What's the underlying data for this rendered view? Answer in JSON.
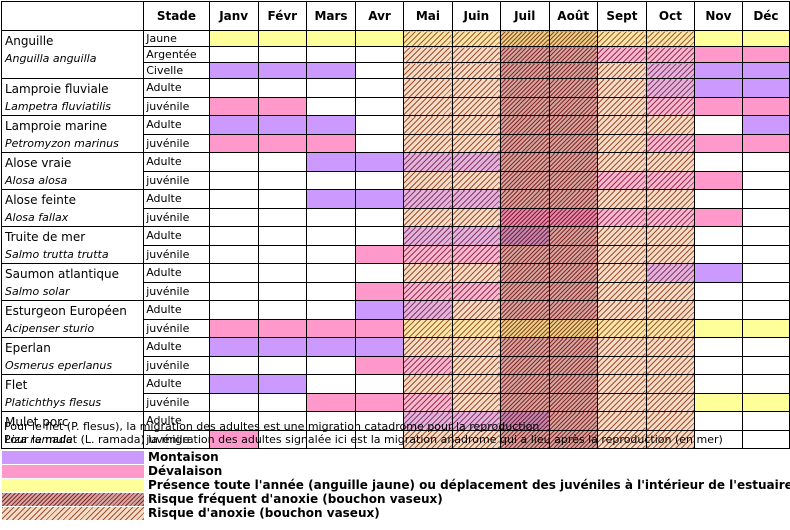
{
  "columns": {
    "stage": "Stade",
    "months": [
      "Janv",
      "Févr",
      "Mars",
      "Avr",
      "Mai",
      "Juin",
      "Juil",
      "Août",
      "Sept",
      "Oct",
      "Nov",
      "Déc"
    ]
  },
  "species": [
    {
      "name": "Anguille",
      "latin": "Anguilla anguilla",
      "rows": [
        {
          "stage": "Jaune",
          "cells": [
            "P",
            "P",
            "P",
            "P",
            "PRA",
            "PRA",
            "PRF",
            "PRF",
            "PRA",
            "PRA",
            "P",
            "P"
          ]
        },
        {
          "stage": "Argentée",
          "cells": [
            "0",
            "0",
            "0",
            "0",
            "RA",
            "RA",
            "RF",
            "RF",
            "DRA",
            "DRA",
            "D",
            "D"
          ]
        },
        {
          "stage": "Civelle",
          "cells": [
            "M",
            "M",
            "M",
            "0",
            "RA",
            "RA",
            "RF",
            "RF",
            "RA",
            "MRA",
            "M",
            "M"
          ]
        }
      ]
    },
    {
      "name": "Lamproie fluviale",
      "latin": "Lampetra fluviatilis",
      "rows": [
        {
          "stage": "Adulte",
          "cells": [
            "0",
            "0",
            "0",
            "0",
            "RA",
            "RA",
            "RF",
            "RF",
            "RA",
            "MRA",
            "M",
            "M"
          ]
        },
        {
          "stage": "juvénile",
          "cells": [
            "D",
            "D",
            "0",
            "0",
            "RA",
            "RA",
            "RF",
            "RF",
            "RA",
            "DRA",
            "D",
            "D"
          ]
        }
      ]
    },
    {
      "name": "Lamproie marine",
      "latin": "Petromyzon marinus",
      "rows": [
        {
          "stage": "Adulte",
          "cells": [
            "M",
            "M",
            "M",
            "0",
            "RA",
            "RA",
            "RF",
            "RF",
            "RA",
            "RA",
            "0",
            "M"
          ]
        },
        {
          "stage": "juvénile",
          "cells": [
            "D",
            "D",
            "D",
            "0",
            "RA",
            "RA",
            "RF",
            "RF",
            "RA",
            "DRA",
            "D",
            "D"
          ]
        }
      ]
    },
    {
      "name": "Alose vraie",
      "latin": "Alosa alosa",
      "rows": [
        {
          "stage": "Adulte",
          "cells": [
            "0",
            "0",
            "M",
            "M",
            "MRA",
            "MRA",
            "RF",
            "RF",
            "RA",
            "RA",
            "0",
            "0"
          ]
        },
        {
          "stage": "juvénile",
          "cells": [
            "0",
            "0",
            "0",
            "0",
            "RA",
            "RA",
            "RF",
            "RF",
            "DRA",
            "DRA",
            "D",
            "0"
          ]
        }
      ]
    },
    {
      "name": "Alose feinte",
      "latin": "Alosa fallax",
      "rows": [
        {
          "stage": "Adulte",
          "cells": [
            "0",
            "0",
            "M",
            "M",
            "MRA",
            "MRA",
            "RF",
            "RF",
            "RA",
            "RA",
            "0",
            "0"
          ]
        },
        {
          "stage": "juvénile",
          "cells": [
            "0",
            "0",
            "0",
            "0",
            "RA",
            "RA",
            "DRF",
            "DRF",
            "DRA",
            "DRA",
            "D",
            "0"
          ]
        }
      ]
    },
    {
      "name": "Truite de mer",
      "latin": "Salmo trutta trutta",
      "rows": [
        {
          "stage": "Adulte",
          "cells": [
            "0",
            "0",
            "0",
            "0",
            "MRA",
            "MRA",
            "MRF",
            "RF",
            "RA",
            "RA",
            "0",
            "0"
          ]
        },
        {
          "stage": "juvénile",
          "cells": [
            "0",
            "0",
            "0",
            "D",
            "DRA",
            "DRA",
            "RF",
            "RF",
            "RA",
            "RA",
            "0",
            "0"
          ]
        }
      ]
    },
    {
      "name": "Saumon atlantique",
      "latin": "Salmo solar",
      "rows": [
        {
          "stage": "Adulte",
          "cells": [
            "0",
            "0",
            "0",
            "0",
            "RA",
            "RA",
            "RF",
            "RF",
            "RA",
            "MRA",
            "M",
            "0"
          ]
        },
        {
          "stage": "juvénile",
          "cells": [
            "0",
            "0",
            "0",
            "D",
            "DRA",
            "DRA",
            "RF",
            "RF",
            "RA",
            "RA",
            "0",
            "0"
          ]
        }
      ]
    },
    {
      "name": "Esturgeon Européen",
      "latin": "Acipenser sturio",
      "rows": [
        {
          "stage": "Adulte",
          "cells": [
            "0",
            "0",
            "0",
            "M",
            "MRA",
            "RA",
            "RF",
            "RF",
            "RA",
            "RA",
            "0",
            "0"
          ]
        },
        {
          "stage": "juvénile",
          "cells": [
            "D",
            "D",
            "D",
            "D",
            "PRA",
            "PRA",
            "PRF",
            "PRF",
            "PRA",
            "PRA",
            "P",
            "P"
          ]
        }
      ]
    },
    {
      "name": "Eperlan",
      "latin": "Osmerus eperlanus",
      "rows": [
        {
          "stage": "Adulte",
          "cells": [
            "M",
            "M",
            "M",
            "M",
            "RA",
            "RA",
            "RF",
            "RF",
            "RA",
            "RA",
            "0",
            "0"
          ]
        },
        {
          "stage": "juvénile",
          "cells": [
            "0",
            "0",
            "0",
            "D",
            "DRA",
            "RA",
            "RF",
            "RF",
            "RA",
            "RA",
            "0",
            "0"
          ]
        }
      ]
    },
    {
      "name": "Flet",
      "latin": "Platichthys flesus",
      "rows": [
        {
          "stage": "Adulte",
          "cells": [
            "M",
            "M",
            "0",
            "0",
            "RA",
            "RA",
            "RF",
            "RF",
            "RA",
            "RA",
            "0",
            "0"
          ]
        },
        {
          "stage": "juvénile",
          "cells": [
            "0",
            "0",
            "D",
            "D",
            "DRA",
            "RA",
            "RF",
            "RF",
            "RA",
            "RA",
            "P",
            "P"
          ]
        }
      ]
    },
    {
      "name": "Mulet porc",
      "latin": "Liza ramada",
      "rows": [
        {
          "stage": "Adulte",
          "cells": [
            "0",
            "0",
            "0",
            "0",
            "MRA",
            "MRA",
            "MRF",
            "RF",
            "RA",
            "RA",
            "0",
            "0"
          ]
        },
        {
          "stage": "juvénile",
          "cells": [
            "D",
            "0",
            "0",
            "0",
            "RA",
            "RA",
            "RF",
            "RF",
            "RA",
            "RA",
            "0",
            "0"
          ]
        }
      ]
    }
  ],
  "notes": [
    "Pour le flet (P. flesus), la migration des adultes est une migration catadrome pour la reproduction",
    "Pour le mulet (L. ramada) la migration des adultes signalée ici est la migration anadrome qui a lieu après la reproduction (en mer)"
  ],
  "legend": [
    {
      "code": "M",
      "label": "Montaison"
    },
    {
      "code": "D",
      "label": "Dévalaison"
    },
    {
      "code": "P",
      "label": "Présence toute l'année (anguille jaune) ou déplacement des juvéniles à l'intérieur de l'estuaire"
    },
    {
      "code": "RF",
      "label": "Risque fréquent d'anoxie (bouchon vaseux)"
    },
    {
      "code": "RA",
      "label": "Risque d'anoxie (bouchon vaseux)"
    }
  ],
  "colors": {
    "montaison": "#cc99ff",
    "devalaison": "#ff99cc",
    "presence": "#ffff99",
    "risque_frequent": "#8b2a2a",
    "risque": "#a0522d"
  }
}
